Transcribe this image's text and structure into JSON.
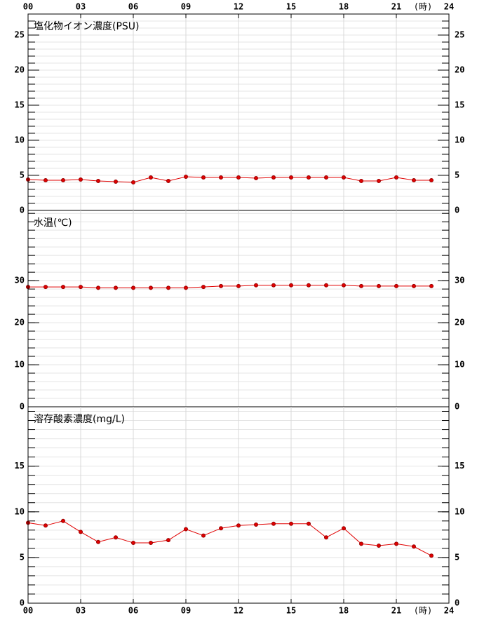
{
  "chart_data": [
    {
      "type": "line",
      "title": "塩化物イオン濃度(PSU)",
      "x": [
        0,
        1,
        2,
        3,
        4,
        5,
        6,
        7,
        8,
        9,
        10,
        11,
        12,
        13,
        14,
        15,
        16,
        17,
        18,
        19,
        20,
        21,
        22,
        23
      ],
      "series": [
        {
          "color": "#e00000",
          "values": [
            4.4,
            4.3,
            4.3,
            4.4,
            4.2,
            4.1,
            4.0,
            4.7,
            4.2,
            4.8,
            4.7,
            4.7,
            4.7,
            4.6,
            4.7,
            4.7,
            4.7,
            4.7,
            4.7,
            4.2,
            4.2,
            4.7,
            4.3,
            4.3
          ]
        }
      ],
      "xlim": [
        0,
        24
      ],
      "xticks": [
        {
          "value": 0,
          "label": "00"
        },
        {
          "value": 3,
          "label": "03"
        },
        {
          "value": 6,
          "label": "06"
        },
        {
          "value": 9,
          "label": "09"
        },
        12,
        15,
        18,
        21,
        24
      ],
      "x_unit": "(時)",
      "x_labels_side": "top",
      "ylim": [
        0,
        28
      ],
      "yticks": [
        0,
        5,
        10,
        15,
        20,
        25
      ],
      "minor_tick_step": 1,
      "grid": true
    },
    {
      "type": "line",
      "title": "水温(℃)",
      "x": [
        0,
        1,
        2,
        3,
        4,
        5,
        6,
        7,
        8,
        9,
        10,
        11,
        12,
        13,
        14,
        15,
        16,
        17,
        18,
        19,
        20,
        21,
        22,
        23
      ],
      "series": [
        {
          "color": "#e00000",
          "values": [
            28.5,
            28.5,
            28.5,
            28.5,
            28.3,
            28.3,
            28.3,
            28.3,
            28.3,
            28.3,
            28.5,
            28.7,
            28.7,
            28.9,
            28.9,
            28.9,
            28.9,
            28.9,
            28.9,
            28.7,
            28.7,
            28.7,
            28.7,
            28.7
          ]
        }
      ],
      "xlim": [
        0,
        24
      ],
      "xticks": [
        0,
        3,
        6,
        9,
        12,
        15,
        18,
        21,
        24
      ],
      "ylim": [
        0,
        46.7
      ],
      "yticks": [
        0,
        10,
        20,
        30
      ],
      "minor_tick_step": 2,
      "grid": true
    },
    {
      "type": "line",
      "title": "溶存酸素濃度(mg/L)",
      "x": [
        0,
        1,
        2,
        3,
        4,
        5,
        6,
        7,
        8,
        9,
        10,
        11,
        12,
        13,
        14,
        15,
        16,
        17,
        18,
        19,
        20,
        21,
        22,
        23
      ],
      "series": [
        {
          "color": "#e00000",
          "values": [
            8.8,
            8.5,
            9.0,
            7.8,
            6.7,
            7.2,
            6.6,
            6.6,
            6.9,
            8.1,
            7.4,
            8.2,
            8.5,
            8.6,
            8.7,
            8.7,
            8.7,
            7.2,
            8.2,
            6.5,
            6.3,
            6.5,
            6.2,
            5.2
          ]
        }
      ],
      "xlim": [
        0,
        24
      ],
      "xticks": [
        {
          "value": 0,
          "label": "00"
        },
        {
          "value": 3,
          "label": "03"
        },
        {
          "value": 6,
          "label": "06"
        },
        {
          "value": 9,
          "label": "09"
        },
        12,
        15,
        18,
        21,
        24
      ],
      "x_unit": "(時)",
      "x_labels_side": "bottom",
      "ylim": [
        0,
        21.5
      ],
      "yticks": [
        0,
        5,
        10,
        15
      ],
      "minor_tick_step": 1,
      "grid": true
    }
  ]
}
